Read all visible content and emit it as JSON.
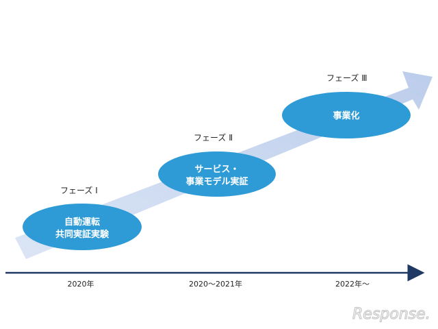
{
  "phases": [
    {
      "label": "フェーズ Ⅰ",
      "bubble_lines": [
        "自動運転",
        "共同実証実験"
      ]
    },
    {
      "label": "フェーズ Ⅱ",
      "bubble_lines": [
        "サービス・",
        "事業モデル実証"
      ]
    },
    {
      "label": "フェーズ Ⅲ",
      "bubble_lines": [
        "事業化"
      ]
    }
  ],
  "timeline": {
    "years": [
      "2020年",
      "2020～2021年",
      "2022年～"
    ]
  },
  "watermark": "Response.",
  "colors": {
    "bubble": "#2e9bd6",
    "arrow_light": "#c9d7ef",
    "timeline": "#1f3864"
  }
}
